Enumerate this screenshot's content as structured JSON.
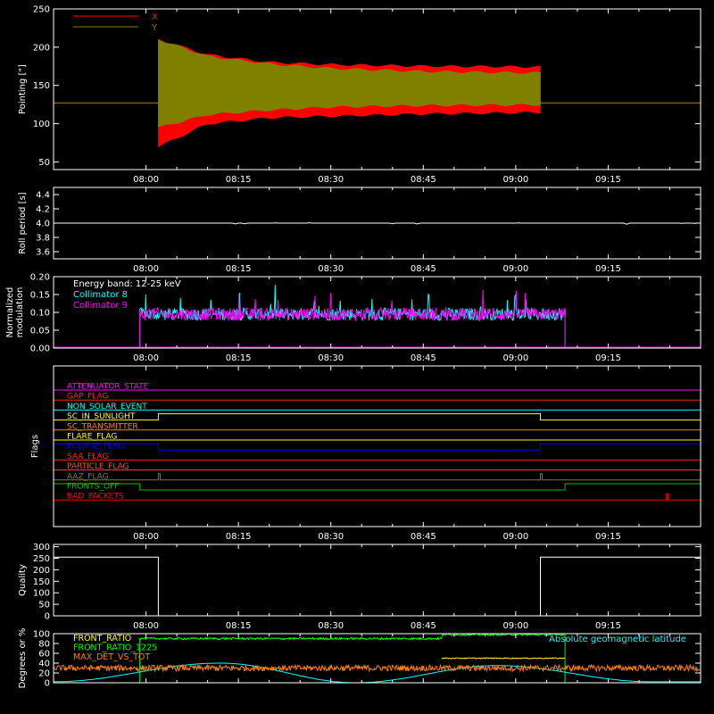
{
  "chart_data": [
    {
      "type": "line",
      "ylabel": "Pointing [\"]",
      "ylim": [
        40,
        250
      ],
      "yticks": [
        50,
        100,
        150,
        200,
        250
      ],
      "xlim_minutes": [
        -15,
        90
      ],
      "xticks": [
        "08:00",
        "08:15",
        "08:30",
        "08:45",
        "09:00",
        "09:15"
      ],
      "legend_position": "top-left",
      "series": [
        {
          "name": "X",
          "color": "#ff0000",
          "baseline": 127,
          "active_start": "08:02",
          "active_end": "09:04",
          "envelope_upper": [
            {
              "t": "08:02",
              "y": 210
            },
            {
              "t": "08:10",
              "y": 190
            },
            {
              "t": "08:20",
              "y": 180
            },
            {
              "t": "08:30",
              "y": 177
            },
            {
              "t": "08:45",
              "y": 175
            },
            {
              "t": "09:04",
              "y": 174
            }
          ],
          "envelope_lower": [
            {
              "t": "08:02",
              "y": 70
            },
            {
              "t": "08:10",
              "y": 100
            },
            {
              "t": "08:20",
              "y": 108
            },
            {
              "t": "08:30",
              "y": 110
            },
            {
              "t": "08:45",
              "y": 113
            },
            {
              "t": "09:04",
              "y": 115
            }
          ]
        },
        {
          "name": "Y",
          "color": "#808000",
          "baseline": 127,
          "active_start": "08:02",
          "active_end": "09:04",
          "envelope_upper": [
            {
              "t": "08:02",
              "y": 210
            },
            {
              "t": "08:10",
              "y": 188
            },
            {
              "t": "08:20",
              "y": 178
            },
            {
              "t": "08:30",
              "y": 172
            },
            {
              "t": "08:45",
              "y": 168
            },
            {
              "t": "09:04",
              "y": 166
            }
          ],
          "envelope_lower": [
            {
              "t": "08:02",
              "y": 95
            },
            {
              "t": "08:10",
              "y": 112
            },
            {
              "t": "08:20",
              "y": 118
            },
            {
              "t": "08:30",
              "y": 122
            },
            {
              "t": "08:45",
              "y": 124
            },
            {
              "t": "09:04",
              "y": 125
            }
          ]
        }
      ]
    },
    {
      "type": "line",
      "ylabel": "Roll period [s]",
      "ylim": [
        3.5,
        4.5
      ],
      "yticks": [
        "3.6",
        "3.8",
        "4.0",
        "4.2",
        "4.4"
      ],
      "xlim_minutes": [
        -15,
        90
      ],
      "xticks": [
        "08:00",
        "08:15",
        "08:30",
        "08:45",
        "09:00",
        "09:15"
      ],
      "series": [
        {
          "name": "",
          "color": "#ffffff",
          "value": 4.0
        }
      ]
    },
    {
      "type": "line",
      "ylabel": "Normalized modulation",
      "ylim": [
        0.0,
        0.2
      ],
      "yticks": [
        "0.00",
        "0.05",
        "0.10",
        "0.15",
        "0.20"
      ],
      "xlim_minutes": [
        -15,
        90
      ],
      "xticks": [
        "08:00",
        "08:15",
        "08:30",
        "08:45",
        "09:00",
        "09:15"
      ],
      "annotation": "Energy band: 12-25 keV",
      "legend_position": "top-left",
      "series": [
        {
          "name": "Collimator 8",
          "color": "#00ffff",
          "mean": 0.095,
          "active_start": "07:59",
          "active_end": "09:08"
        },
        {
          "name": "Collimator 9",
          "color": "#ff00ff",
          "mean": 0.095,
          "active_start": "07:59",
          "active_end": "09:08"
        }
      ]
    },
    {
      "type": "line",
      "ylabel": "Flags",
      "xlim_minutes": [
        -15,
        90
      ],
      "xticks": [
        "08:00",
        "08:15",
        "08:30",
        "08:45",
        "09:00",
        "09:15"
      ],
      "flags": [
        {
          "name": "ATTENUATOR_STATE",
          "color": "#ff00ff",
          "steps": []
        },
        {
          "name": "GAP_FLAG",
          "color": "#ff2020",
          "steps": []
        },
        {
          "name": "NON_SOLAR_EVENT",
          "color": "#00ffff",
          "steps": []
        },
        {
          "name": "SC_IN_SUNLIGHT",
          "color": "#ffff00",
          "steps": [
            {
              "start": "08:02",
              "end": "09:04"
            }
          ]
        },
        {
          "name": "SC_TRANSMITTER",
          "color": "#ff8000",
          "steps": []
        },
        {
          "name": "FLARE_FLAG",
          "color": "#ffff00",
          "steps": []
        },
        {
          "name": "ECLIPSE_FLAG",
          "color": "#0000ff",
          "steps": [
            {
              "start": "07:45",
              "end": "08:02"
            },
            {
              "start": "09:04",
              "end": "09:30"
            }
          ]
        },
        {
          "name": "SAA_FLAG",
          "color": "#ff2020",
          "steps": []
        },
        {
          "name": "PARTICLE_FLAG",
          "color": "#ff4040",
          "steps": []
        },
        {
          "name": "AAZ_FLAG",
          "color": "#808000",
          "steps": [
            {
              "start": "08:02",
              "end": "08:02.3"
            },
            {
              "start": "09:04",
              "end": "09:04.3"
            }
          ]
        },
        {
          "name": "FRONTS_OFF",
          "color": "#00c000",
          "steps": [
            {
              "start": "07:45",
              "end": "07:59"
            },
            {
              "start": "09:08",
              "end": "09:30"
            }
          ]
        },
        {
          "name": "BAD_PACKETS",
          "color": "#ff0000",
          "steps": [
            {
              "start": "09:24.4",
              "end": "09:24.7"
            }
          ]
        }
      ]
    },
    {
      "type": "line",
      "ylabel": "Quality",
      "ylim": [
        0,
        310
      ],
      "yticks": [
        0,
        50,
        100,
        150,
        200,
        250,
        300
      ],
      "xlim_minutes": [
        -15,
        90
      ],
      "xticks": [
        "08:00",
        "08:15",
        "08:30",
        "08:45",
        "09:00",
        "09:15"
      ],
      "series": [
        {
          "name": "",
          "color": "#ffffff",
          "high_value": 255,
          "low_value": 0,
          "low_start": "08:02",
          "low_end": "09:04"
        }
      ]
    },
    {
      "type": "line",
      "ylabel": "Degrees or %",
      "ylim": [
        0,
        100
      ],
      "yticks": [
        0,
        20,
        40,
        60,
        80,
        100
      ],
      "xlim_minutes": [
        -15,
        90
      ],
      "xticks": [
        "08:00",
        "08:15",
        "08:30",
        "08:45",
        "09:00",
        "09:15"
      ],
      "legend_position": "top-left",
      "annotation": "Absolute geomagnetic latitude",
      "annotation_color": "#00ffff",
      "series": [
        {
          "name": "FRONT_RATIO",
          "color": "#ffff00",
          "value": 50,
          "active_start": "08:48",
          "active_end": "09:08"
        },
        {
          "name": "FRONT_RATIO_1225",
          "color": "#00ff00",
          "value": 90,
          "active_start": "07:59",
          "active_end": "09:08"
        },
        {
          "name": "MAX_DET_VS_TOT",
          "color": "#ff8000",
          "value": 30,
          "active_start": "07:45",
          "active_end": "09:30"
        },
        {
          "name": "",
          "color": "#00ffff",
          "peaks": [
            {
              "t": "08:12",
              "y": 40
            },
            {
              "t": "08:57",
              "y": 35
            }
          ],
          "troughs": [
            {
              "t": "07:45",
              "y": 2
            },
            {
              "t": "08:34",
              "y": 0
            },
            {
              "t": "09:22",
              "y": 2
            }
          ]
        }
      ]
    }
  ]
}
